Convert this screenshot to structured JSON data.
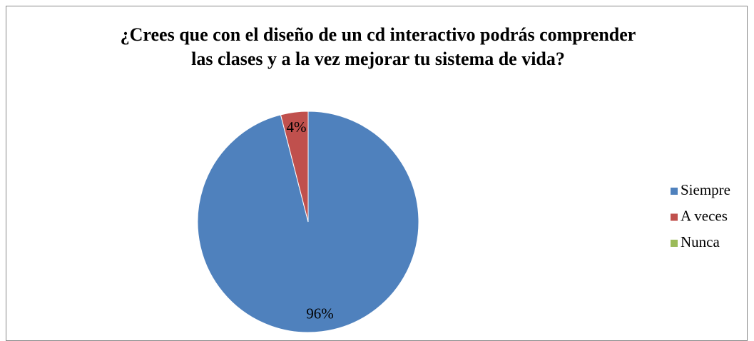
{
  "chart_data": {
    "type": "pie",
    "title": "¿Crees que con el diseño de un cd interactivo podrás comprender las  clases y a la vez mejorar tu sistema de vida?",
    "categories": [
      "Siempre",
      "A veces",
      "Nunca"
    ],
    "values": [
      96,
      4,
      0
    ],
    "value_labels": [
      "96%",
      "4%",
      null
    ],
    "colors": [
      "#4f81bd",
      "#c0504d",
      "#9bbb59"
    ],
    "legend": "right"
  }
}
